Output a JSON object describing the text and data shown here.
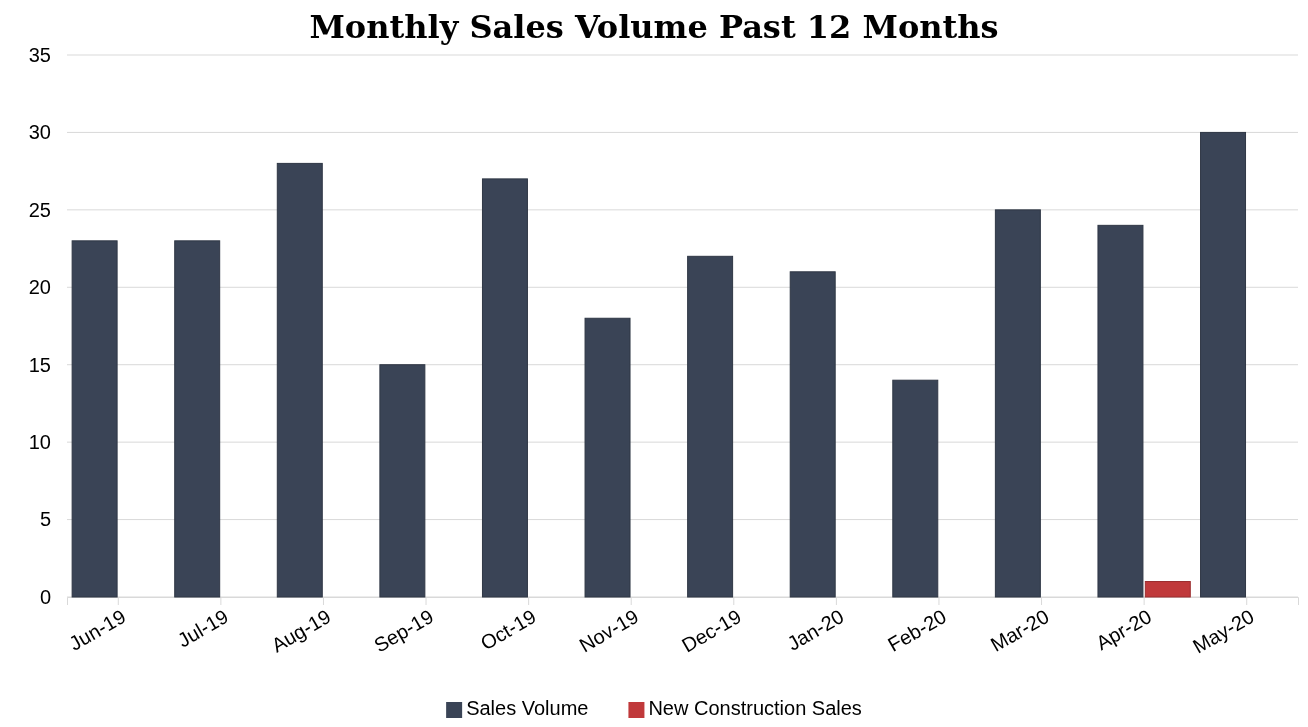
{
  "chart_data": {
    "type": "bar",
    "title": "Monthly Sales Volume Past 12 Months",
    "categories": [
      "Jun-19",
      "Jul-19",
      "Aug-19",
      "Sep-19",
      "Oct-19",
      "Nov-19",
      "Dec-19",
      "Jan-20",
      "Feb-20",
      "Mar-20",
      "Apr-20",
      "May-20"
    ],
    "series": [
      {
        "name": "Sales Volume",
        "color": "#3a4456",
        "values": [
          23,
          23,
          28,
          15,
          27,
          18,
          22,
          21,
          14,
          25,
          24,
          30
        ]
      },
      {
        "name": "New Construction Sales",
        "color": "#c0393b",
        "values": [
          null,
          null,
          null,
          null,
          null,
          null,
          null,
          null,
          null,
          null,
          1,
          null
        ]
      }
    ],
    "ylim": [
      0,
      35
    ],
    "yticks": [
      0,
      5,
      10,
      15,
      20,
      25,
      30,
      35
    ],
    "grid": "y",
    "legend": "bottom"
  }
}
